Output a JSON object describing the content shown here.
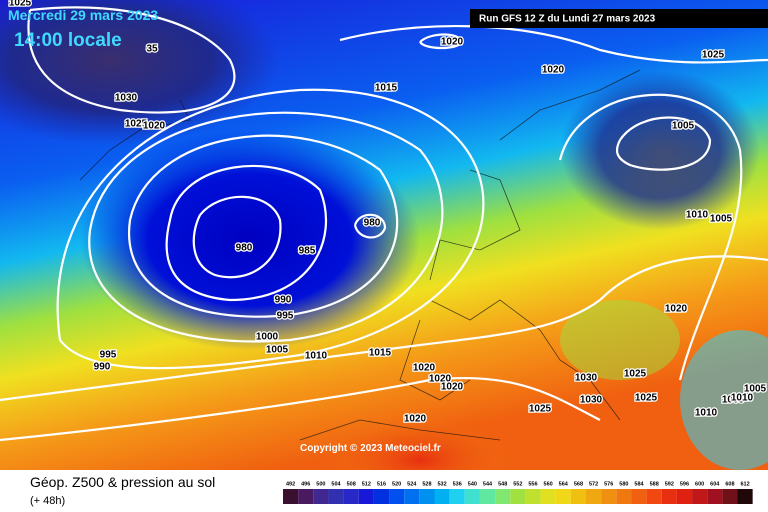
{
  "header": {
    "date": "Mercredi 29 mars 2023",
    "time": "14:00 locale",
    "run": "Run GFS 12 Z du Lundi 27 mars 2023"
  },
  "copyright": "Copyright © 2023 Meteociel.fr",
  "footer": {
    "title": "Géop. Z500 & pression au sol",
    "lead": "(+ 48h)"
  },
  "legend": [
    492,
    496,
    500,
    504,
    508,
    512,
    516,
    520,
    524,
    528,
    532,
    536,
    540,
    544,
    548,
    552,
    556,
    560,
    564,
    568,
    572,
    576,
    580,
    584,
    588,
    592,
    596,
    600,
    604,
    608,
    612
  ],
  "isobar_labels": [
    "1025",
    "35",
    "1030",
    "1025",
    "1020",
    "1020",
    "1015",
    "1020",
    "1025",
    "1005",
    "980",
    "985",
    "980",
    "990",
    "995",
    "1000",
    "1005",
    "1010",
    "995",
    "990",
    "1015",
    "1020",
    "1020",
    "1020",
    "1020",
    "1030",
    "1030",
    "1025",
    "1025",
    "1025",
    "1010",
    "1005",
    "1020",
    "1010",
    "1005",
    "1005",
    "1010"
  ]
}
